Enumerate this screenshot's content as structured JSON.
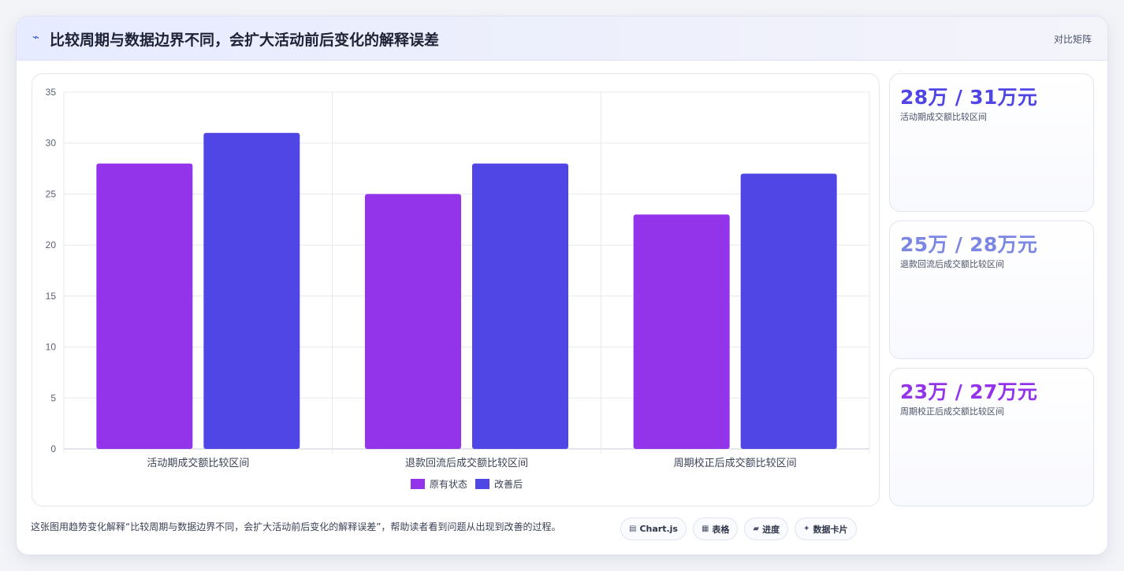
{
  "header": {
    "icon": "trend-icon",
    "title": "比较周期与数据边界不同，会扩大活动前后变化的解释误差",
    "tag": "对比矩阵"
  },
  "colors": {
    "series_a": "#9333ea",
    "series_b": "#4f46e5",
    "card_b": "#7c87e3"
  },
  "chart_data": {
    "type": "bar",
    "categories": [
      "活动期成交额比较区间",
      "退款回流后成交额比较区间",
      "周期校正后成交额比较区间"
    ],
    "series": [
      {
        "name": "原有状态",
        "values": [
          28,
          25,
          23
        ]
      },
      {
        "name": "改善后",
        "values": [
          31,
          28,
          27
        ]
      }
    ],
    "title": "",
    "xlabel": "",
    "ylabel": "",
    "ylim": [
      0,
      35
    ],
    "yticks": [
      0,
      5,
      10,
      15,
      20,
      25,
      30,
      35
    ],
    "grid": true,
    "legend": "bottom"
  },
  "cards": [
    {
      "value": "28万 / 31万元",
      "label": "活动期成交额比较区间"
    },
    {
      "value": "25万 / 28万元",
      "label": "退款回流后成交额比较区间"
    },
    {
      "value": "23万 / 27万元",
      "label": "周期校正后成交额比较区间"
    }
  ],
  "caption": "这张图用趋势变化解释“比较周期与数据边界不同，会扩大活动前后变化的解释误差”，帮助读者看到问题从出现到改善的过程。",
  "chips": [
    {
      "icon": "chart-icon",
      "glyph": "▤",
      "label": "Chart.js"
    },
    {
      "icon": "table-icon",
      "glyph": "▦",
      "label": "表格"
    },
    {
      "icon": "progress-icon",
      "glyph": "▰",
      "label": "进度"
    },
    {
      "icon": "sparkle-icon",
      "glyph": "✦",
      "label": "数据卡片"
    }
  ]
}
